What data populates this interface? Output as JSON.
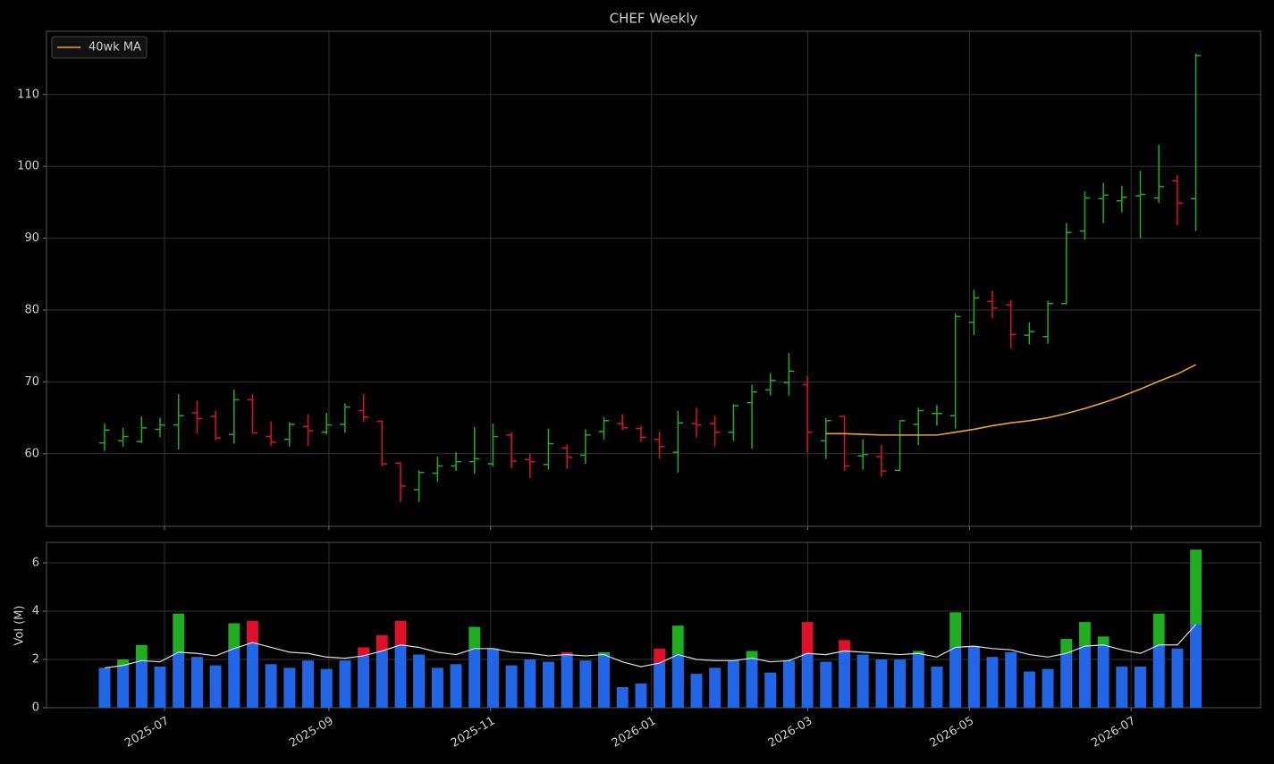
{
  "chart_data": [
    {
      "type": "ohlc",
      "title": "CHEF Weekly",
      "x": [
        0,
        1,
        2,
        3,
        4,
        5,
        6,
        7,
        8,
        9,
        10,
        11,
        12,
        13,
        14,
        15,
        16,
        17,
        18,
        19,
        20,
        21,
        22,
        23,
        24,
        25,
        26,
        27,
        28,
        29,
        30,
        31,
        32,
        33,
        34,
        35,
        36,
        37,
        38,
        39,
        40,
        41,
        42,
        43,
        44,
        45,
        46,
        47,
        48,
        49,
        50,
        51,
        52,
        53,
        54,
        55,
        56,
        57,
        58,
        59
      ],
      "open": [
        61.5,
        61.8,
        61.7,
        63.4,
        64.0,
        65.7,
        65.2,
        62.7,
        67.5,
        62.4,
        62.0,
        63.8,
        63.0,
        64.1,
        66.0,
        64.5,
        58.7,
        55.0,
        57.3,
        58.3,
        58.9,
        58.6,
        62.6,
        59.2,
        58.5,
        60.8,
        59.8,
        63.1,
        64.2,
        63.5,
        62.0,
        60.2,
        64.2,
        64.2,
        63.0,
        67.1,
        68.9,
        69.9,
        69.6,
        61.8,
        65.2,
        59.7,
        59.6,
        57.7,
        64.1,
        65.6,
        65.3,
        78.3,
        81.2,
        80.7,
        76.5,
        76.3,
        80.9,
        91.0,
        95.5,
        95.2,
        95.9,
        95.6,
        98.0,
        95.5
      ],
      "high": [
        64.2,
        63.6,
        65.2,
        65.0,
        68.3,
        67.4,
        66.0,
        68.9,
        68.3,
        64.5,
        64.4,
        65.5,
        65.7,
        67.0,
        68.3,
        64.6,
        58.8,
        57.7,
        59.6,
        60.2,
        63.7,
        64.2,
        63.0,
        60.0,
        63.5,
        61.3,
        63.4,
        65.1,
        65.5,
        63.9,
        63.1,
        66.0,
        66.4,
        65.3,
        66.9,
        69.6,
        71.2,
        74.0,
        70.8,
        65.0,
        65.3,
        62.0,
        61.2,
        64.6,
        66.4,
        66.8,
        79.5,
        82.8,
        82.7,
        81.4,
        78.3,
        81.3,
        92.1,
        96.5,
        97.7,
        97.3,
        99.4,
        103.0,
        98.8,
        115.7
      ],
      "low": [
        60.4,
        61.0,
        61.5,
        62.3,
        60.6,
        62.8,
        61.9,
        61.4,
        62.8,
        61.1,
        61.0,
        61.1,
        62.7,
        62.9,
        64.4,
        58.3,
        53.3,
        53.3,
        56.1,
        57.6,
        57.2,
        58.2,
        58.0,
        56.6,
        57.8,
        57.9,
        58.6,
        62.0,
        63.3,
        61.7,
        59.3,
        57.4,
        62.3,
        61.0,
        61.8,
        60.7,
        68.1,
        68.1,
        60.2,
        59.3,
        57.6,
        57.8,
        56.8,
        57.6,
        61.2,
        63.9,
        63.5,
        76.5,
        78.9,
        74.7,
        75.2,
        75.3,
        80.8,
        89.8,
        92.1,
        93.6,
        90.0,
        94.9,
        91.8,
        91.0
      ],
      "close": [
        63.3,
        62.4,
        63.6,
        64.0,
        65.3,
        64.9,
        62.2,
        67.5,
        62.9,
        61.6,
        64.1,
        63.2,
        64.0,
        66.5,
        65.1,
        58.6,
        55.5,
        57.4,
        58.3,
        58.9,
        59.3,
        62.4,
        59.0,
        58.9,
        61.4,
        59.5,
        62.6,
        64.6,
        63.6,
        62.3,
        61.0,
        64.3,
        64.0,
        63.0,
        66.7,
        68.6,
        70.2,
        71.5,
        63.0,
        64.6,
        58.3,
        59.9,
        57.6,
        64.6,
        66.0,
        65.6,
        79.1,
        81.7,
        80.3,
        76.6,
        77.0,
        80.9,
        90.8,
        95.6,
        96.0,
        95.7,
        96.1,
        97.2,
        94.9,
        115.4
      ],
      "up_color": "#1fae1f",
      "down_color": "#e0102a",
      "series": [
        {
          "name": "40wk MA",
          "color": "#e8a33a",
          "values": [
            null,
            null,
            null,
            null,
            null,
            null,
            null,
            null,
            null,
            null,
            null,
            null,
            null,
            null,
            null,
            null,
            null,
            null,
            null,
            null,
            null,
            null,
            null,
            null,
            null,
            null,
            null,
            null,
            null,
            null,
            null,
            null,
            null,
            null,
            null,
            null,
            null,
            null,
            null,
            62.8,
            62.8,
            62.7,
            62.6,
            62.6,
            62.6,
            62.6,
            63.0,
            63.4,
            63.9,
            64.3,
            64.6,
            65.0,
            65.6,
            66.3,
            67.1,
            68.0,
            69.0,
            70.1,
            71.1,
            72.4
          ]
        }
      ],
      "xlim": [
        -3.14,
        62.5
      ],
      "ylim": [
        49.9,
        118.8
      ],
      "yticks": [
        60,
        70,
        80,
        90,
        100,
        110
      ],
      "grid": true,
      "legend": "upper left"
    },
    {
      "type": "volume",
      "ylabel": "Vol (M)",
      "x": [
        0,
        1,
        2,
        3,
        4,
        5,
        6,
        7,
        8,
        9,
        10,
        11,
        12,
        13,
        14,
        15,
        16,
        17,
        18,
        19,
        20,
        21,
        22,
        23,
        24,
        25,
        26,
        27,
        28,
        29,
        30,
        31,
        32,
        33,
        34,
        35,
        36,
        37,
        38,
        39,
        40,
        41,
        42,
        43,
        44,
        45,
        46,
        47,
        48,
        49,
        50,
        51,
        52,
        53,
        54,
        55,
        56,
        57,
        58,
        59
      ],
      "values": [
        1.65,
        2.0,
        2.6,
        1.7,
        3.9,
        2.1,
        1.75,
        3.5,
        3.6,
        1.8,
        1.65,
        1.95,
        1.6,
        1.95,
        2.5,
        3.0,
        3.6,
        2.2,
        1.65,
        1.8,
        3.35,
        2.45,
        1.75,
        2.0,
        1.9,
        2.3,
        1.95,
        2.3,
        0.85,
        1.0,
        2.45,
        3.4,
        1.4,
        1.65,
        1.95,
        2.35,
        1.45,
        1.95,
        3.55,
        1.9,
        2.8,
        2.2,
        2.0,
        2.0,
        2.35,
        1.7,
        3.95,
        2.55,
        2.1,
        2.3,
        1.5,
        1.6,
        2.85,
        3.55,
        2.95,
        1.7,
        1.7,
        3.9,
        2.45,
        6.55
      ],
      "color": "#2166e8",
      "ma": {
        "color": "#dddddd",
        "values": [
          1.65,
          1.75,
          1.95,
          1.9,
          2.3,
          2.25,
          2.15,
          2.45,
          2.7,
          2.5,
          2.3,
          2.25,
          2.1,
          2.05,
          2.15,
          2.35,
          2.6,
          2.5,
          2.3,
          2.2,
          2.45,
          2.45,
          2.3,
          2.25,
          2.15,
          2.2,
          2.15,
          2.2,
          1.9,
          1.7,
          1.85,
          2.2,
          2.0,
          1.95,
          1.95,
          2.05,
          1.9,
          1.95,
          2.25,
          2.2,
          2.35,
          2.3,
          2.25,
          2.2,
          2.25,
          2.1,
          2.5,
          2.55,
          2.45,
          2.4,
          2.2,
          2.1,
          2.25,
          2.55,
          2.6,
          2.4,
          2.25,
          2.6,
          2.6,
          3.45
        ]
      },
      "xlim": [
        -3.14,
        62.5
      ],
      "xticks": [
        {
          "value": 3.24,
          "label": "2025-07"
        },
        {
          "value": 12.13,
          "label": "2025-09"
        },
        {
          "value": 20.87,
          "label": "2025-11"
        },
        {
          "value": 29.57,
          "label": "2026-01"
        },
        {
          "value": 38.02,
          "label": "2026-03"
        },
        {
          "value": 46.76,
          "label": "2026-05"
        },
        {
          "value": 55.5,
          "label": "2026-07"
        }
      ],
      "ylim": [
        0,
        6.85
      ],
      "yticks": [
        0,
        2,
        4,
        6
      ],
      "grid": true
    }
  ]
}
